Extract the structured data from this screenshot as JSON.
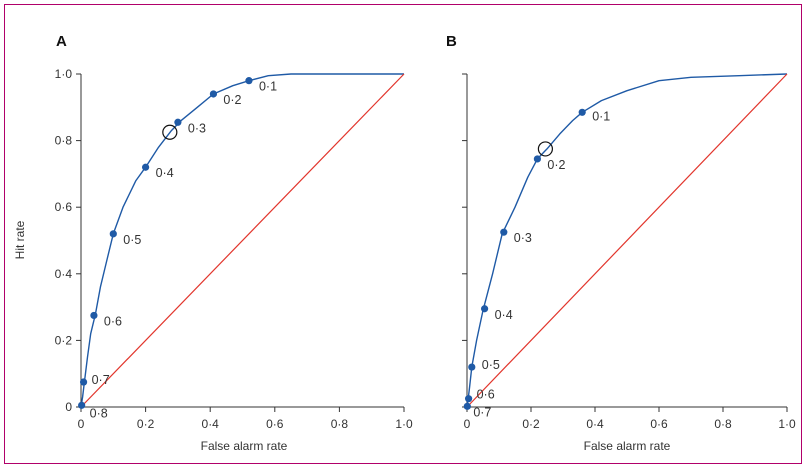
{
  "colors": {
    "frame": "#b1006a",
    "curve": "#1f5aa6",
    "point": "#1f5aa6",
    "diagonal": "#e2352c",
    "axis": "#333333"
  },
  "chart_data": [
    {
      "type": "line",
      "panel_letter": "A",
      "xlabel": "False alarm rate",
      "ylabel": "Hit rate",
      "xlim": [
        0,
        1
      ],
      "ylim": [
        0,
        1
      ],
      "ticks": [
        0,
        0.2,
        0.4,
        0.6,
        0.8,
        1.0
      ],
      "x_tick_labels": [
        "0",
        "0·2",
        "0·4",
        "0·6",
        "0·8",
        "1·0"
      ],
      "y_tick_labels": [
        "0",
        "0·2",
        "0·4",
        "0·6",
        "0·8",
        "1·0"
      ],
      "grid": false,
      "series": [
        {
          "kind": "roc-curve",
          "points": [
            [
              0,
              0
            ],
            [
              0.005,
              0.03
            ],
            [
              0.01,
              0.07
            ],
            [
              0.02,
              0.15
            ],
            [
              0.03,
              0.22
            ],
            [
              0.045,
              0.28
            ],
            [
              0.06,
              0.36
            ],
            [
              0.08,
              0.44
            ],
            [
              0.1,
              0.52
            ],
            [
              0.13,
              0.6
            ],
            [
              0.17,
              0.68
            ],
            [
              0.2,
              0.72
            ],
            [
              0.24,
              0.78
            ],
            [
              0.28,
              0.83
            ],
            [
              0.31,
              0.86
            ],
            [
              0.36,
              0.9
            ],
            [
              0.41,
              0.94
            ],
            [
              0.47,
              0.965
            ],
            [
              0.52,
              0.98
            ],
            [
              0.58,
              0.995
            ],
            [
              0.65,
              1.0
            ],
            [
              1.0,
              1.0
            ]
          ]
        },
        {
          "kind": "chance-line",
          "points": [
            [
              0,
              0
            ],
            [
              1,
              1
            ]
          ]
        }
      ],
      "threshold_points": [
        {
          "label": "0·1",
          "x": 0.52,
          "y": 0.98
        },
        {
          "label": "0·2",
          "x": 0.41,
          "y": 0.94
        },
        {
          "label": "0·3",
          "x": 0.3,
          "y": 0.855
        },
        {
          "label": "0·4",
          "x": 0.2,
          "y": 0.72
        },
        {
          "label": "0·5",
          "x": 0.1,
          "y": 0.52
        },
        {
          "label": "0·6",
          "x": 0.04,
          "y": 0.275
        },
        {
          "label": "0·7",
          "x": 0.008,
          "y": 0.075
        },
        {
          "label": "0·8",
          "x": 0.002,
          "y": 0.005
        }
      ],
      "open_circle": {
        "x": 0.275,
        "y": 0.825
      }
    },
    {
      "type": "line",
      "panel_letter": "B",
      "xlabel": "False alarm rate",
      "ylabel": "",
      "xlim": [
        0,
        1
      ],
      "ylim": [
        0,
        1
      ],
      "ticks": [
        0,
        0.2,
        0.4,
        0.6,
        0.8,
        1.0
      ],
      "x_tick_labels": [
        "0",
        "0·2",
        "0·4",
        "0·6",
        "0·8",
        "1·0"
      ],
      "y_tick_labels": [],
      "grid": false,
      "series": [
        {
          "kind": "roc-curve",
          "points": [
            [
              0,
              0
            ],
            [
              0.003,
              0.02
            ],
            [
              0.008,
              0.06
            ],
            [
              0.015,
              0.12
            ],
            [
              0.03,
              0.2
            ],
            [
              0.05,
              0.29
            ],
            [
              0.08,
              0.4
            ],
            [
              0.11,
              0.52
            ],
            [
              0.15,
              0.6
            ],
            [
              0.19,
              0.69
            ],
            [
              0.22,
              0.745
            ],
            [
              0.25,
              0.775
            ],
            [
              0.29,
              0.82
            ],
            [
              0.33,
              0.86
            ],
            [
              0.36,
              0.885
            ],
            [
              0.42,
              0.92
            ],
            [
              0.5,
              0.95
            ],
            [
              0.6,
              0.98
            ],
            [
              0.7,
              0.99
            ],
            [
              0.85,
              0.995
            ],
            [
              1.0,
              1.0
            ]
          ]
        },
        {
          "kind": "chance-line",
          "points": [
            [
              0,
              0
            ],
            [
              1,
              1
            ]
          ]
        }
      ],
      "threshold_points": [
        {
          "label": "0·1",
          "x": 0.36,
          "y": 0.885
        },
        {
          "label": "0·2",
          "x": 0.22,
          "y": 0.745
        },
        {
          "label": "0·3",
          "x": 0.115,
          "y": 0.525
        },
        {
          "label": "0·4",
          "x": 0.055,
          "y": 0.295
        },
        {
          "label": "0·5",
          "x": 0.015,
          "y": 0.12
        },
        {
          "label": "0·6",
          "x": 0.005,
          "y": 0.025
        },
        {
          "label": "0·7",
          "x": 0.001,
          "y": 0.002
        }
      ],
      "open_circle": {
        "x": 0.245,
        "y": 0.775
      }
    }
  ]
}
